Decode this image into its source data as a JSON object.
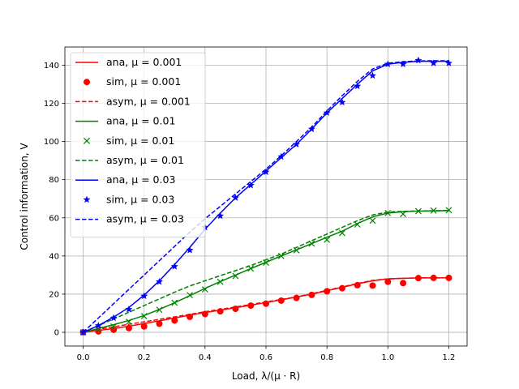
{
  "chart_data": {
    "type": "line",
    "title": "",
    "xlabel": "Load, λ/(μ · R)",
    "ylabel": "Control information, V",
    "xlim": [
      -0.06,
      1.26
    ],
    "ylim": [
      -7.2,
      149.5
    ],
    "xticks": [
      0.0,
      0.2,
      0.4,
      0.6,
      0.8,
      1.0,
      1.2
    ],
    "xtick_labels": [
      "0.0",
      "0.2",
      "0.4",
      "0.6",
      "0.8",
      "1.0",
      "1.2"
    ],
    "yticks": [
      0,
      20,
      40,
      60,
      80,
      100,
      120,
      140
    ],
    "ytick_labels": [
      "0",
      "20",
      "40",
      "60",
      "80",
      "100",
      "120",
      "140"
    ],
    "grid": true,
    "legend_position": "top-left",
    "series": [
      {
        "name": "ana, μ = 0.001",
        "color": "#ff0000",
        "style": "solid",
        "x": [
          0,
          0.05,
          0.1,
          0.15,
          0.2,
          0.25,
          0.3,
          0.35,
          0.4,
          0.45,
          0.5,
          0.55,
          0.6,
          0.65,
          0.7,
          0.75,
          0.8,
          0.85,
          0.9,
          0.95,
          1.0,
          1.05,
          1.1,
          1.15,
          1.2
        ],
        "y": [
          0,
          1.0,
          2.0,
          3.2,
          4.6,
          6.0,
          7.5,
          9.0,
          10.4,
          11.6,
          12.9,
          14.2,
          15.6,
          17.0,
          18.5,
          20.0,
          21.8,
          23.6,
          25.4,
          27.0,
          28.0,
          28.3,
          28.5,
          28.5,
          28.6
        ]
      },
      {
        "name": "sim, μ = 0.001",
        "color": "#ff0000",
        "style": "markers",
        "marker": "circle",
        "x": [
          0,
          0.05,
          0.1,
          0.15,
          0.2,
          0.25,
          0.3,
          0.35,
          0.4,
          0.45,
          0.5,
          0.55,
          0.6,
          0.65,
          0.7,
          0.75,
          0.8,
          0.85,
          0.9,
          0.95,
          1.0,
          1.05,
          1.1,
          1.15,
          1.2
        ],
        "y": [
          0,
          0.5,
          1.3,
          2.2,
          3.1,
          4.5,
          6.2,
          8.1,
          9.6,
          11.0,
          12.3,
          14.0,
          15.0,
          16.6,
          18.0,
          19.6,
          21.5,
          23.1,
          24.7,
          24.5,
          26.5,
          25.8,
          28.4,
          28.5,
          28.5
        ]
      },
      {
        "name": "asym, μ = 0.001",
        "color": "#ff0000",
        "style": "dashed",
        "x": [
          0,
          0.05,
          0.1,
          0.15,
          0.2,
          0.25,
          0.3,
          0.35,
          0.4,
          0.45,
          0.5,
          0.55,
          0.6,
          0.65,
          0.7,
          0.75,
          0.8,
          0.85,
          0.9,
          0.95,
          1.0,
          1.05,
          1.1,
          1.15,
          1.2
        ],
        "y": [
          0,
          1.6,
          2.9,
          4.2,
          5.5,
          6.8,
          8.1,
          9.4,
          10.8,
          12.0,
          13.3,
          14.6,
          15.9,
          17.2,
          18.6,
          20.2,
          22.0,
          23.8,
          25.6,
          27.2,
          28.0,
          28.3,
          28.5,
          28.5,
          28.6
        ]
      },
      {
        "name": "ana, μ = 0.01",
        "color": "#008000",
        "style": "solid",
        "x": [
          0,
          0.05,
          0.1,
          0.15,
          0.2,
          0.25,
          0.3,
          0.35,
          0.4,
          0.45,
          0.5,
          0.55,
          0.6,
          0.65,
          0.7,
          0.75,
          0.8,
          0.85,
          0.9,
          0.95,
          1.0,
          1.05,
          1.1,
          1.15,
          1.2
        ],
        "y": [
          0,
          2.0,
          4.0,
          6.2,
          8.8,
          12.0,
          15.5,
          19.2,
          23.0,
          26.6,
          30.0,
          33.4,
          36.7,
          40.0,
          43.2,
          46.5,
          49.8,
          53.0,
          57.0,
          60.5,
          62.5,
          63.2,
          63.5,
          63.6,
          63.8
        ]
      },
      {
        "name": "sim, μ = 0.01",
        "color": "#008000",
        "style": "markers",
        "marker": "x",
        "x": [
          0,
          0.05,
          0.1,
          0.15,
          0.2,
          0.25,
          0.3,
          0.35,
          0.4,
          0.45,
          0.5,
          0.55,
          0.6,
          0.65,
          0.7,
          0.75,
          0.8,
          0.85,
          0.9,
          0.95,
          1.0,
          1.05,
          1.1,
          1.15,
          1.2
        ],
        "y": [
          0,
          1.5,
          3.0,
          5.5,
          8.5,
          11.8,
          15.5,
          19.5,
          22.5,
          26.5,
          29.5,
          33.5,
          36.5,
          40.0,
          43.0,
          46.5,
          48.5,
          52.0,
          56.5,
          58.5,
          62.5,
          62.0,
          63.5,
          63.8,
          64.0
        ]
      },
      {
        "name": "asym, μ = 0.01",
        "color": "#008000",
        "style": "dashed",
        "x": [
          0,
          0.05,
          0.1,
          0.15,
          0.2,
          0.25,
          0.3,
          0.35,
          0.4,
          0.45,
          0.5,
          0.55,
          0.6,
          0.65,
          0.7,
          0.75,
          0.8,
          0.85,
          0.9,
          0.95,
          1.0,
          1.05,
          1.1,
          1.15,
          1.2
        ],
        "y": [
          0,
          3.5,
          7.0,
          10.5,
          14.0,
          17.5,
          21.0,
          24.3,
          27.0,
          29.7,
          32.3,
          35.0,
          38.0,
          41.0,
          44.5,
          48.0,
          51.5,
          55.0,
          58.5,
          61.5,
          63.0,
          63.4,
          63.6,
          63.7,
          63.8
        ]
      },
      {
        "name": "ana, μ = 0.03",
        "color": "#0000ff",
        "style": "solid",
        "x": [
          0,
          0.05,
          0.1,
          0.15,
          0.2,
          0.25,
          0.3,
          0.35,
          0.4,
          0.45,
          0.5,
          0.55,
          0.6,
          0.65,
          0.7,
          0.75,
          0.8,
          0.85,
          0.9,
          0.95,
          1.0,
          1.05,
          1.1,
          1.15,
          1.2
        ],
        "y": [
          0,
          3.5,
          8.0,
          13.0,
          19.5,
          27.0,
          35.5,
          44.5,
          54.0,
          62.5,
          70.5,
          77.5,
          84.5,
          91.5,
          98.5,
          106.5,
          115.0,
          122.5,
          130.0,
          137.0,
          140.5,
          141.5,
          142.0,
          142.0,
          142.0
        ]
      },
      {
        "name": "sim, μ = 0.03",
        "color": "#0000ff",
        "style": "markers",
        "marker": "star",
        "x": [
          0,
          0.05,
          0.1,
          0.15,
          0.2,
          0.25,
          0.3,
          0.35,
          0.4,
          0.45,
          0.5,
          0.55,
          0.6,
          0.65,
          0.7,
          0.75,
          0.8,
          0.85,
          0.9,
          0.95,
          1.0,
          1.05,
          1.1,
          1.15,
          1.2
        ],
        "y": [
          0,
          3.5,
          7.5,
          12.0,
          19.0,
          26.5,
          34.5,
          43.0,
          55.0,
          61.0,
          70.5,
          77.0,
          84.0,
          92.0,
          98.5,
          106.5,
          115.0,
          120.5,
          129.0,
          134.5,
          140.5,
          140.5,
          142.5,
          141.0,
          141.0
        ]
      },
      {
        "name": "asym, μ = 0.03",
        "color": "#0000ff",
        "style": "dashed",
        "x": [
          0,
          0.05,
          0.1,
          0.15,
          0.2,
          0.25,
          0.3,
          0.35,
          0.4,
          0.45,
          0.5,
          0.55,
          0.6,
          0.65,
          0.7,
          0.75,
          0.8,
          0.85,
          0.9,
          0.95,
          1.0,
          1.05,
          1.1,
          1.15,
          1.2
        ],
        "y": [
          0,
          7.5,
          15.0,
          22.5,
          30.0,
          37.5,
          45.0,
          52.5,
          59.5,
          66.0,
          72.5,
          79.0,
          85.5,
          92.5,
          100.0,
          107.5,
          116.0,
          124.0,
          131.5,
          138.0,
          141.0,
          141.8,
          142.2,
          142.3,
          142.3
        ]
      }
    ]
  }
}
